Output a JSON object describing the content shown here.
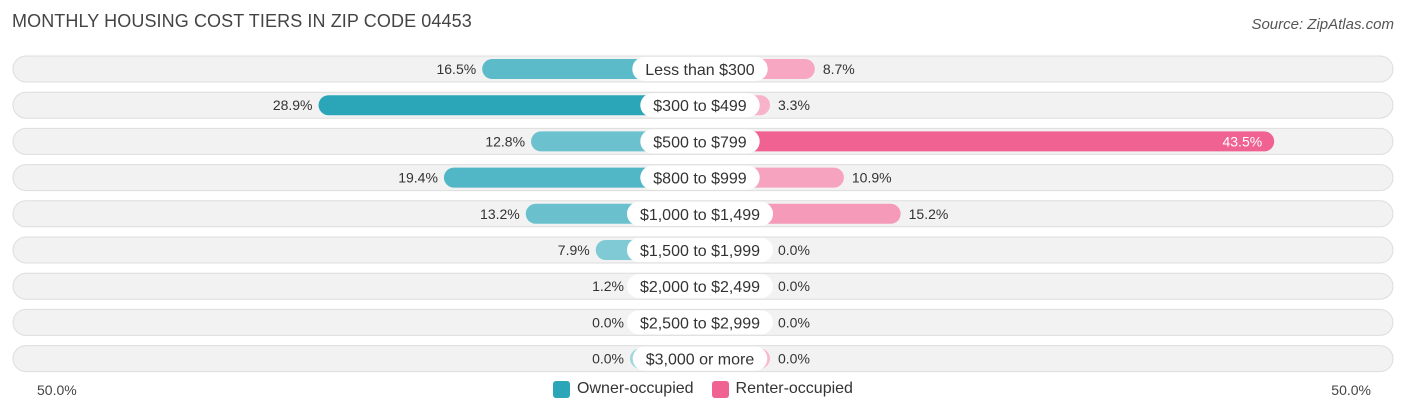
{
  "title": "MONTHLY HOUSING COST TIERS IN ZIP CODE 04453",
  "source": "Source: ZipAtlas.com",
  "chart_data": {
    "type": "bar",
    "orientation": "horizontal-diverging",
    "categories": [
      "Less than $300",
      "$300 to $499",
      "$500 to $799",
      "$800 to $999",
      "$1,000 to $1,499",
      "$1,500 to $1,999",
      "$2,000 to $2,499",
      "$2,500 to $2,999",
      "$3,000 or more"
    ],
    "series": [
      {
        "name": "Owner-occupied",
        "color": "#2aa6b8",
        "values": [
          16.5,
          28.9,
          12.8,
          19.4,
          13.2,
          7.9,
          1.2,
          0.0,
          0.0
        ],
        "labels": [
          "16.5%",
          "28.9%",
          "12.8%",
          "19.4%",
          "13.2%",
          "7.9%",
          "1.2%",
          "0.0%",
          "0.0%"
        ]
      },
      {
        "name": "Renter-occupied",
        "color": "#f06292",
        "values": [
          8.7,
          3.3,
          43.5,
          10.9,
          15.2,
          0.0,
          0.0,
          0.0,
          0.0
        ],
        "labels": [
          "8.7%",
          "3.3%",
          "43.5%",
          "10.9%",
          "15.2%",
          "0.0%",
          "0.0%",
          "0.0%",
          "0.0%"
        ]
      }
    ],
    "xlim": [
      -50,
      50
    ],
    "axis_left_label": "50.0%",
    "axis_right_label": "50.0%",
    "legend_position": "bottom-center"
  }
}
